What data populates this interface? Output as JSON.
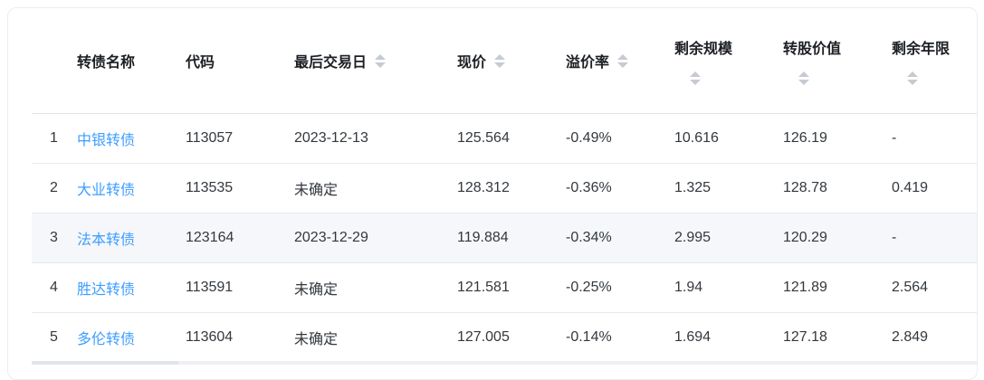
{
  "table": {
    "columns": [
      {
        "key": "index",
        "label": "",
        "sortable": false,
        "caret": "none"
      },
      {
        "key": "name",
        "label": "转债名称",
        "sortable": false,
        "caret": "none"
      },
      {
        "key": "code",
        "label": "代码",
        "sortable": false,
        "caret": "none"
      },
      {
        "key": "last_trade_date",
        "label": "最后交易日",
        "sortable": true,
        "caret": "inline"
      },
      {
        "key": "price",
        "label": "现价",
        "sortable": true,
        "caret": "inline"
      },
      {
        "key": "premium_rate",
        "label": "溢价率",
        "sortable": true,
        "caret": "inline"
      },
      {
        "key": "remaining_size",
        "label": "剩余规模",
        "sortable": true,
        "caret": "below"
      },
      {
        "key": "conversion_value",
        "label": "转股价值",
        "sortable": true,
        "caret": "below"
      },
      {
        "key": "remaining_years",
        "label": "剩余年限",
        "sortable": true,
        "caret": "below"
      }
    ],
    "rows": [
      {
        "index": "1",
        "name": "中银转债",
        "code": "113057",
        "last_trade_date": "2023-12-13",
        "price": "125.564",
        "premium_rate": "-0.49%",
        "remaining_size": "10.616",
        "conversion_value": "126.19",
        "remaining_years": "-",
        "highlighted": false
      },
      {
        "index": "2",
        "name": "大业转债",
        "code": "113535",
        "last_trade_date": "未确定",
        "price": "128.312",
        "premium_rate": "-0.36%",
        "remaining_size": "1.325",
        "conversion_value": "128.78",
        "remaining_years": "0.419",
        "highlighted": false
      },
      {
        "index": "3",
        "name": "法本转债",
        "code": "123164",
        "last_trade_date": "2023-12-29",
        "price": "119.884",
        "premium_rate": "-0.34%",
        "remaining_size": "2.995",
        "conversion_value": "120.29",
        "remaining_years": "-",
        "highlighted": true
      },
      {
        "index": "4",
        "name": "胜达转债",
        "code": "113591",
        "last_trade_date": "未确定",
        "price": "121.581",
        "premium_rate": "-0.25%",
        "remaining_size": "1.94",
        "conversion_value": "121.89",
        "remaining_years": "2.564",
        "highlighted": false
      },
      {
        "index": "5",
        "name": "多伦转债",
        "code": "113604",
        "last_trade_date": "未确定",
        "price": "127.005",
        "premium_rate": "-0.14%",
        "remaining_size": "1.694",
        "conversion_value": "127.18",
        "remaining_years": "2.849",
        "highlighted": false
      }
    ]
  },
  "icons": {
    "sort_caret": "up-down-triangle-pair"
  },
  "colors": {
    "link_blue": "#3d9eff",
    "sort_caret_gray": "#c6cbd2",
    "highlighted_row_bg": "#f6f7fa",
    "header_border": "#dde5ec",
    "row_border": "#e5eaf0",
    "card_border": "#e9edf2",
    "header_text": "#1c1f23",
    "body_text": "#33383d"
  }
}
